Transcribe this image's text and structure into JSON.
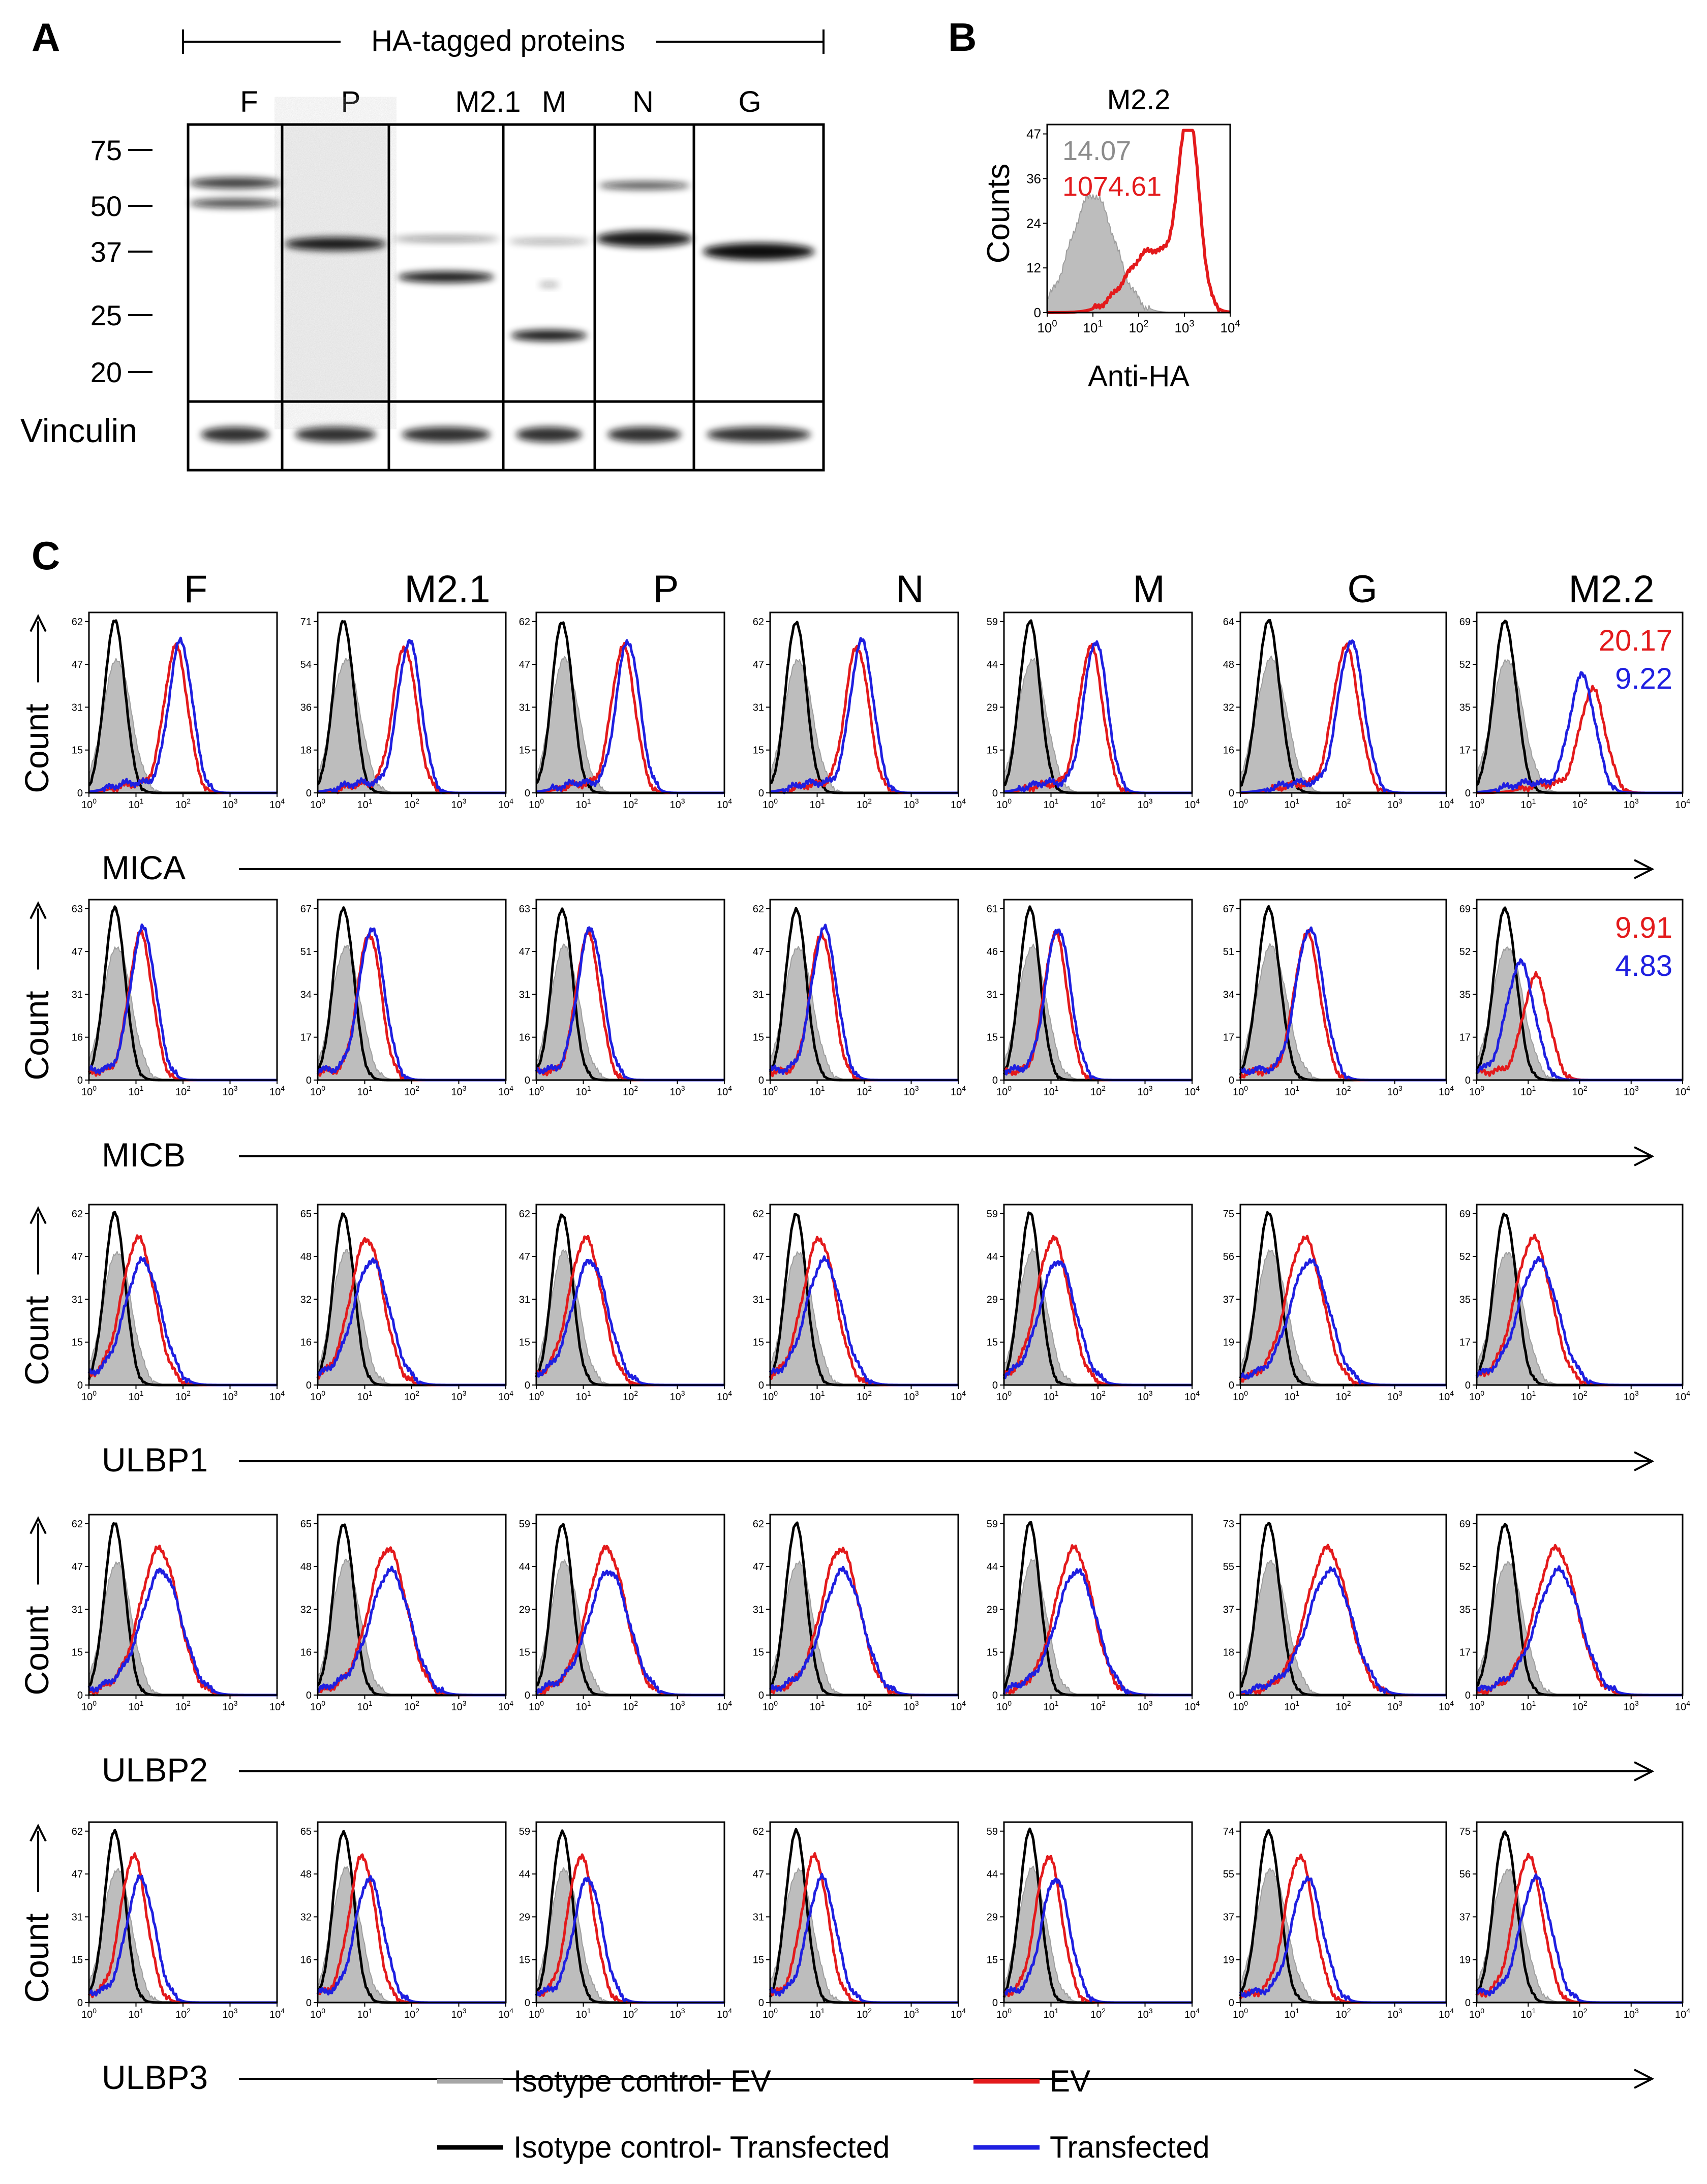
{
  "panel_labels": {
    "a": "A",
    "b": "B",
    "c": "C"
  },
  "panel_a": {
    "header": "HA-tagged proteins",
    "lanes": [
      "F",
      "P",
      "M2.1",
      "M",
      "N",
      "G"
    ],
    "mw_markers": [
      "75",
      "50",
      "37",
      "25",
      "20"
    ],
    "loading_control": "Vinculin"
  },
  "panel_b": {
    "title": "M2.2",
    "ylabel": "Counts",
    "xlabel": "Anti-HA",
    "yticks": [
      "0",
      "12",
      "24",
      "36",
      "47"
    ],
    "xticks": [
      "0",
      "1",
      "2",
      "3",
      "4"
    ],
    "mfi_isotype": "14.07",
    "mfi_transfected": "1074.61"
  },
  "panel_c": {
    "columns": [
      "F",
      "M2.1",
      "P",
      "N",
      "M",
      "G",
      "M2.2"
    ],
    "y_axis_label": "Count",
    "rows": [
      {
        "marker": "MICA",
        "ymax": [
          "62",
          "71",
          "62",
          "62",
          "59",
          "64",
          "69"
        ],
        "annot_ev": "20.17",
        "annot_tr": "9.22"
      },
      {
        "marker": "MICB",
        "ymax": [
          "63",
          "67",
          "63",
          "62",
          "61",
          "67",
          "69"
        ],
        "annot_ev": "9.91",
        "annot_tr": "4.83"
      },
      {
        "marker": "ULBP1",
        "ymax": [
          "62",
          "65",
          "62",
          "62",
          "59",
          "75",
          "69"
        ]
      },
      {
        "marker": "ULBP2",
        "ymax": [
          "62",
          "65",
          "59",
          "62",
          "59",
          "73",
          "69"
        ]
      },
      {
        "marker": "ULBP3",
        "ymax": [
          "62",
          "65",
          "59",
          "62",
          "59",
          "74",
          "75"
        ]
      }
    ],
    "ytick_sets": {
      "62": [
        "0",
        "15",
        "31",
        "47",
        "62"
      ],
      "63": [
        "0",
        "16",
        "31",
        "47",
        "63"
      ],
      "71": [
        "0",
        "18",
        "36",
        "54",
        "71"
      ],
      "67": [
        "0",
        "17",
        "34",
        "51",
        "67"
      ],
      "65": [
        "0",
        "16",
        "32",
        "48",
        "65"
      ],
      "59": [
        "0",
        "15",
        "29",
        "44",
        "59"
      ],
      "61": [
        "0",
        "15",
        "31",
        "46",
        "61"
      ],
      "64": [
        "0",
        "16",
        "32",
        "48",
        "64"
      ],
      "69": [
        "0",
        "17",
        "35",
        "52",
        "69"
      ],
      "75": [
        "0",
        "19",
        "37",
        "56",
        "75"
      ],
      "73": [
        "0",
        "18",
        "37",
        "55",
        "73"
      ],
      "74": [
        "0",
        "19",
        "37",
        "55",
        "74"
      ]
    },
    "xtick_exponents": [
      "0",
      "1",
      "2",
      "3",
      "4"
    ]
  },
  "legend": [
    {
      "label": "Isotype control- EV",
      "color": "#a6a6a6"
    },
    {
      "label": "EV",
      "color": "#e31a1c"
    },
    {
      "label": "Isotype control- Transfected",
      "color": "#000000"
    },
    {
      "label": "Transfected",
      "color": "#1f1fe0"
    }
  ],
  "colors": {
    "ev": "#e31a1c",
    "transfected": "#1f1fe0",
    "isotype_ev_fill": "#bdbdbd",
    "isotype_tr": "#000000"
  }
}
